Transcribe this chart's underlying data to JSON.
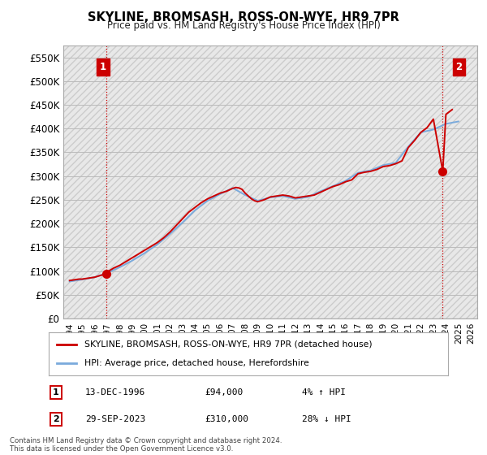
{
  "title": "SKYLINE, BROMSASH, ROSS-ON-WYE, HR9 7PR",
  "subtitle": "Price paid vs. HM Land Registry's House Price Index (HPI)",
  "ylim": [
    0,
    575000
  ],
  "yticks": [
    0,
    50000,
    100000,
    150000,
    200000,
    250000,
    300000,
    350000,
    400000,
    450000,
    500000,
    550000
  ],
  "ytick_labels": [
    "£0",
    "£50K",
    "£100K",
    "£150K",
    "£200K",
    "£250K",
    "£300K",
    "£350K",
    "£400K",
    "£450K",
    "£500K",
    "£550K"
  ],
  "hpi_color": "#7aaadc",
  "price_color": "#cc0000",
  "marker_color": "#cc0000",
  "annotation_box_color": "#cc0000",
  "background_color": "#ffffff",
  "grid_color": "#bbbbbb",
  "point1": {
    "date_label": "13-DEC-1996",
    "year": 1996.95,
    "price": 94000,
    "pct": "4%",
    "direction": "↑"
  },
  "point2": {
    "date_label": "29-SEP-2023",
    "year": 2023.75,
    "price": 310000,
    "pct": "28%",
    "direction": "↓"
  },
  "legend_label1": "SKYLINE, BROMSASH, ROSS-ON-WYE, HR9 7PR (detached house)",
  "legend_label2": "HPI: Average price, detached house, Herefordshire",
  "footnote": "Contains HM Land Registry data © Crown copyright and database right 2024.\nThis data is licensed under the Open Government Licence v3.0.",
  "xmin": 1993.5,
  "xmax": 2026.5,
  "xticks": [
    1994,
    1995,
    1996,
    1997,
    1998,
    1999,
    2000,
    2001,
    2002,
    2003,
    2004,
    2005,
    2006,
    2007,
    2008,
    2009,
    2010,
    2011,
    2012,
    2013,
    2014,
    2015,
    2016,
    2017,
    2018,
    2019,
    2020,
    2021,
    2022,
    2023,
    2024,
    2025,
    2026
  ],
  "hpi_years": [
    1994,
    1995,
    1996,
    1997,
    1998,
    1999,
    2000,
    2001,
    2002,
    2003,
    2004,
    2005,
    2006,
    2007,
    2008,
    2009,
    2010,
    2011,
    2012,
    2013,
    2014,
    2015,
    2016,
    2017,
    2018,
    2019,
    2020,
    2021,
    2022,
    2023,
    2024,
    2025
  ],
  "hpi_values": [
    78000,
    82000,
    87000,
    96000,
    108000,
    122000,
    138000,
    156000,
    178000,
    202000,
    228000,
    248000,
    262000,
    275000,
    260000,
    248000,
    255000,
    258000,
    252000,
    256000,
    268000,
    279000,
    290000,
    307000,
    312000,
    323000,
    328000,
    362000,
    392000,
    398000,
    410000,
    415000
  ],
  "price_years": [
    1994.0,
    1994.25,
    1994.5,
    1994.75,
    1995.0,
    1995.25,
    1995.5,
    1995.75,
    1996.0,
    1996.25,
    1996.5,
    1996.95,
    1997.0,
    1997.5,
    1998.0,
    1998.5,
    1999.0,
    1999.5,
    2000.0,
    2000.5,
    2001.0,
    2001.5,
    2002.0,
    2002.5,
    2003.0,
    2003.5,
    2004.0,
    2004.5,
    2005.0,
    2005.5,
    2006.0,
    2006.5,
    2007.0,
    2007.25,
    2007.5,
    2007.75,
    2008.0,
    2008.25,
    2008.5,
    2008.75,
    2009.0,
    2009.5,
    2010.0,
    2010.5,
    2011.0,
    2011.5,
    2012.0,
    2012.5,
    2013.0,
    2013.5,
    2014.0,
    2014.5,
    2015.0,
    2015.5,
    2016.0,
    2016.5,
    2017.0,
    2017.5,
    2018.0,
    2018.5,
    2019.0,
    2019.5,
    2020.0,
    2020.5,
    2021.0,
    2021.5,
    2022.0,
    2022.5,
    2023.0,
    2023.75,
    2024.0,
    2024.5
  ],
  "price_values": [
    80000,
    81000,
    82000,
    83000,
    83000,
    84000,
    85000,
    86000,
    87000,
    89000,
    91000,
    94000,
    98000,
    106000,
    112000,
    120000,
    128000,
    136000,
    144000,
    152000,
    160000,
    170000,
    182000,
    196000,
    210000,
    224000,
    234000,
    244000,
    252000,
    258000,
    264000,
    268000,
    274000,
    276000,
    275000,
    272000,
    264000,
    258000,
    252000,
    248000,
    246000,
    250000,
    256000,
    258000,
    260000,
    258000,
    254000,
    256000,
    258000,
    260000,
    266000,
    272000,
    278000,
    282000,
    288000,
    292000,
    305000,
    308000,
    310000,
    314000,
    320000,
    322000,
    326000,
    332000,
    360000,
    375000,
    392000,
    402000,
    420000,
    310000,
    430000,
    440000
  ]
}
